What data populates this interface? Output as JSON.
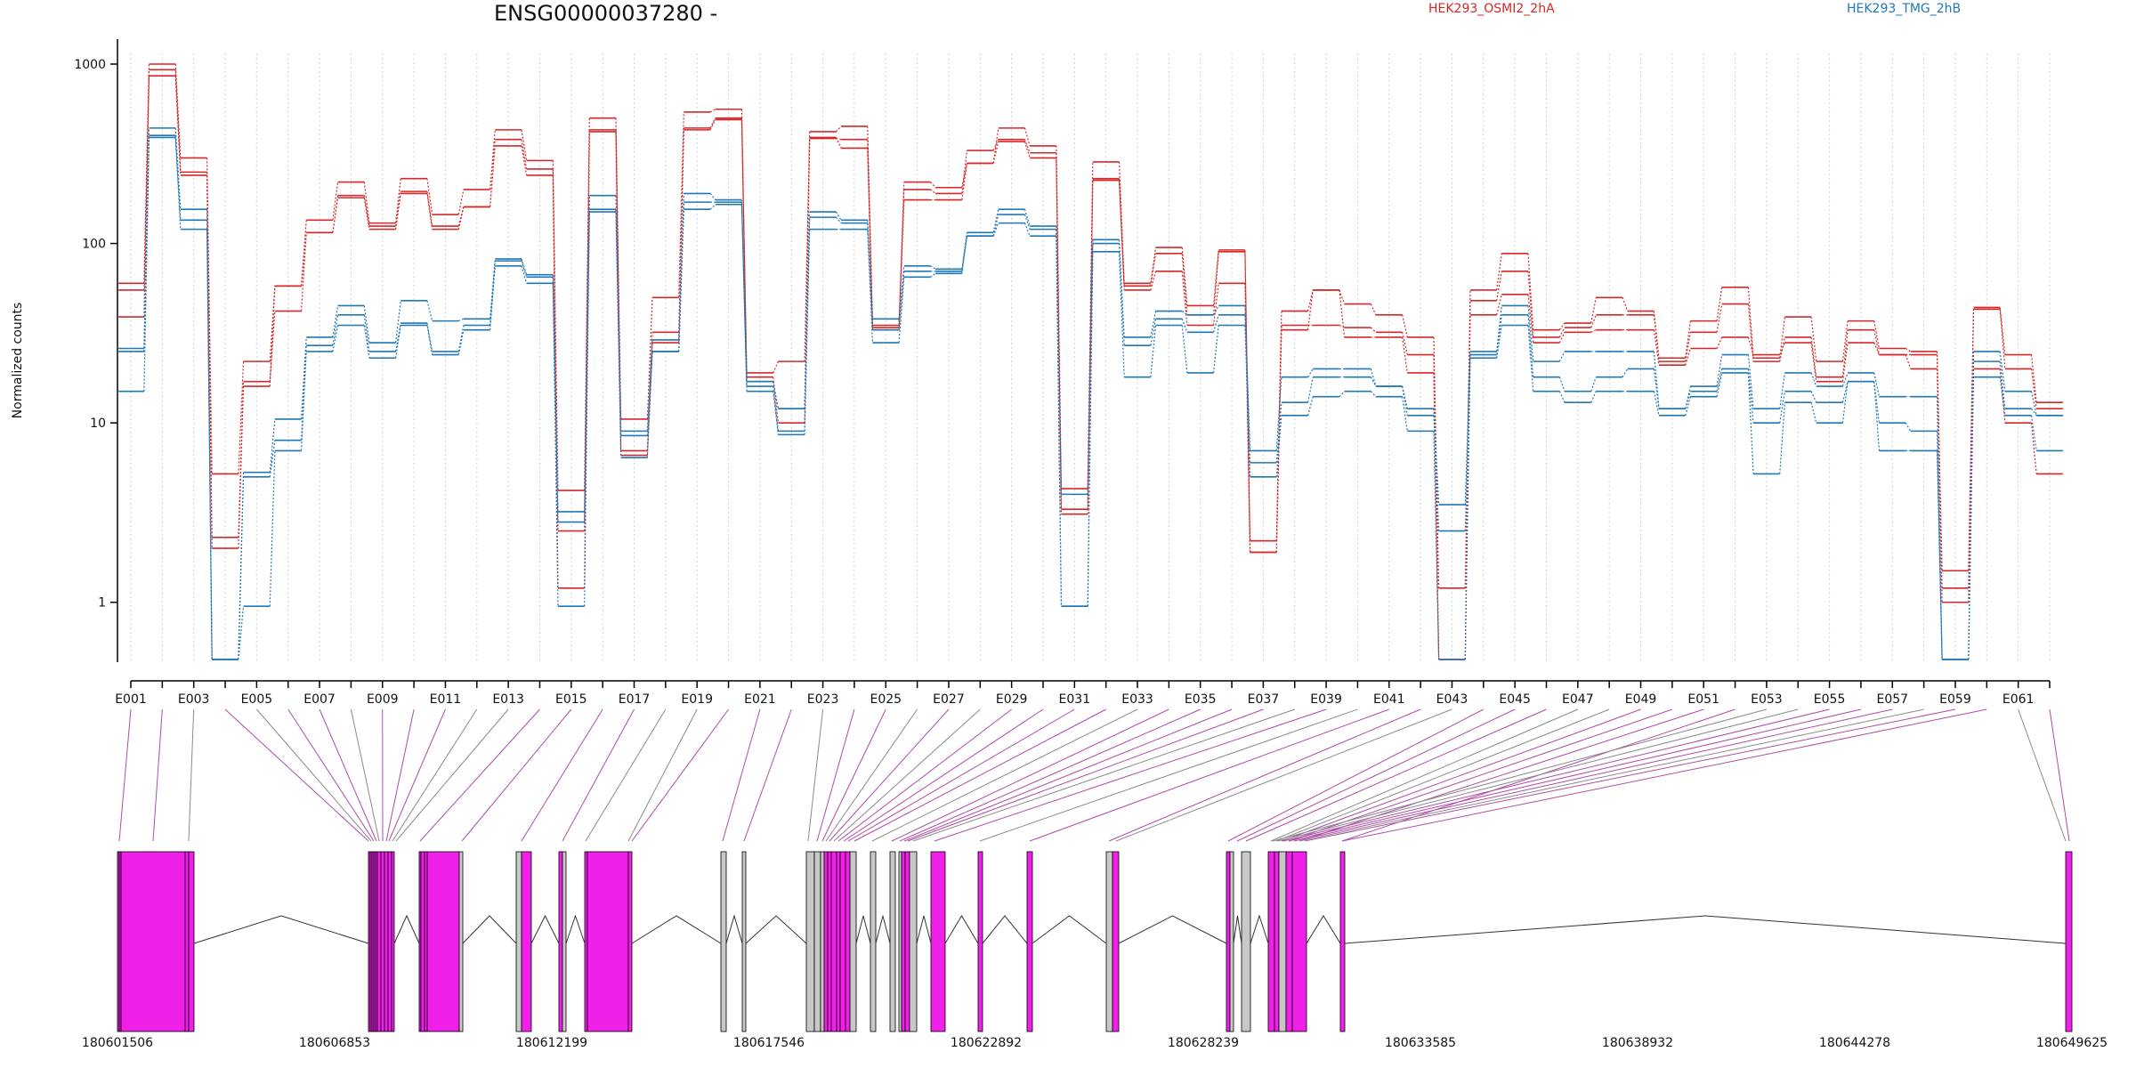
{
  "chart_data": {
    "type": "line",
    "title": "ENSG00000037280 -",
    "ylabel": "Normalized counts",
    "y_scale": "log",
    "ylim": [
      0.4,
      1200
    ],
    "y_ticks": [
      {
        "value": 1,
        "label": "1"
      },
      {
        "value": 10,
        "label": "10"
      },
      {
        "value": 100,
        "label": "100"
      },
      {
        "value": 1000,
        "label": "1000"
      }
    ],
    "categories": [
      "E001",
      "E002",
      "E003",
      "E004",
      "E005",
      "E006",
      "E007",
      "E008",
      "E009",
      "E010",
      "E011",
      "E012",
      "E013",
      "E014",
      "E015",
      "E016",
      "E017",
      "E018",
      "E019",
      "E020",
      "E021",
      "E022",
      "E023",
      "E024",
      "E025",
      "E026",
      "E027",
      "E028",
      "E029",
      "E030",
      "E031",
      "E032",
      "E033",
      "E034",
      "E035",
      "E036",
      "E037",
      "E038",
      "E039",
      "E040",
      "E041",
      "E042",
      "E043",
      "E044",
      "E045",
      "E046",
      "E047",
      "E048",
      "E049",
      "E050",
      "E051",
      "E052",
      "E053",
      "E054",
      "E055",
      "E056",
      "E057",
      "E058",
      "E059",
      "E060",
      "E061",
      "E062"
    ],
    "x_tick_labels": [
      "E001",
      "E003",
      "E005",
      "E007",
      "E009",
      "E011",
      "E013",
      "E015",
      "E017",
      "E019",
      "E021",
      "E023",
      "E025",
      "E027",
      "E029",
      "E031",
      "E033",
      "E035",
      "E037",
      "E039",
      "E041",
      "E043",
      "E045",
      "E047",
      "E049",
      "E051",
      "E053",
      "E055",
      "E057",
      "E059",
      "E061"
    ],
    "legend": [
      {
        "name": "HEK293_OSMI2_2hA",
        "color": "#d62728"
      },
      {
        "name": "HEK293_TMG_2hB",
        "color": "#1f77b4"
      }
    ],
    "series": [
      {
        "group": "HEK293_OSMI2_2hA",
        "color": "#d62728",
        "values": [
          60,
          1000,
          300,
          5.2,
          22,
          58,
          135,
          220,
          130,
          230,
          145,
          200,
          430,
          290,
          4.2,
          500,
          10.5,
          50,
          540,
          560,
          19,
          22,
          420,
          450,
          35,
          220,
          205,
          280,
          440,
          350,
          4.3,
          285,
          60,
          95,
          45,
          92,
          2.2,
          42,
          55,
          46,
          40,
          30,
          1.2,
          55,
          88,
          33,
          36,
          50,
          42,
          23,
          37,
          57,
          23,
          39,
          22,
          37,
          26,
          25,
          1.5,
          44,
          24,
          13
        ]
      },
      {
        "group": "HEK293_OSMI2_2hA",
        "color": "#d62728",
        "values": [
          55,
          930,
          250,
          2.3,
          17,
          42,
          115,
          185,
          125,
          195,
          125,
          160,
          380,
          260,
          1.2,
          420,
          7,
          32,
          440,
          500,
          17,
          12,
          385,
          380,
          33,
          200,
          190,
          330,
          380,
          320,
          3.3,
          230,
          55,
          70,
          35,
          60,
          1.9,
          35,
          35,
          34,
          32,
          24,
          0.48,
          48,
          70,
          30,
          34,
          40,
          40,
          22,
          32,
          46,
          22,
          30,
          18,
          33,
          24,
          24,
          1.2,
          43,
          20,
          12
        ]
      },
      {
        "group": "HEK293_OSMI2_2hA",
        "color": "#d62728",
        "values": [
          39,
          860,
          240,
          2.0,
          16,
          58,
          115,
          180,
          120,
          190,
          120,
          160,
          350,
          240,
          2.5,
          430,
          6.6,
          28,
          430,
          490,
          18,
          10,
          390,
          340,
          34,
          175,
          175,
          280,
          370,
          300,
          3.1,
          225,
          58,
          88,
          40,
          90,
          1.9,
          33,
          55,
          30,
          30,
          19,
          0.48,
          40,
          52,
          28,
          32,
          33,
          33,
          21,
          26,
          30,
          24,
          28,
          17,
          28,
          24,
          20,
          1.0,
          20,
          10,
          5.2
        ]
      },
      {
        "group": "HEK293_TMG_2hB",
        "color": "#1f77b4",
        "values": [
          26,
          440,
          155,
          0.48,
          5.3,
          10.5,
          30,
          45,
          28,
          48,
          37,
          38,
          82,
          67,
          3.2,
          185,
          9,
          29,
          190,
          175,
          17,
          12,
          150,
          135,
          38,
          75,
          72,
          115,
          155,
          125,
          4.0,
          105,
          30,
          42,
          40,
          45,
          7,
          18,
          20,
          20,
          16,
          12,
          3.5,
          25,
          45,
          22,
          25,
          25,
          25,
          12,
          16,
          24,
          12,
          19,
          16,
          19,
          14,
          14,
          0.48,
          25,
          15,
          11
        ]
      },
      {
        "group": "HEK293_TMG_2hB",
        "color": "#1f77b4",
        "values": [
          25,
          400,
          135,
          0.48,
          5,
          8,
          27,
          40,
          25,
          36,
          25,
          35,
          80,
          65,
          2.8,
          155,
          8.5,
          25,
          170,
          170,
          16,
          9,
          140,
          130,
          33,
          70,
          70,
          110,
          145,
          120,
          0.95,
          100,
          27,
          38,
          32,
          40,
          6,
          13,
          18,
          18,
          16,
          11,
          2.5,
          24,
          40,
          18,
          15,
          18,
          20,
          12,
          15,
          20,
          10,
          15,
          13,
          17,
          10,
          9,
          0.48,
          22,
          12,
          11
        ]
      },
      {
        "group": "HEK293_TMG_2hB",
        "color": "#1f77b4",
        "values": [
          15,
          390,
          120,
          0.48,
          0.95,
          7,
          25,
          35,
          23,
          35,
          24,
          33,
          75,
          60,
          0.95,
          150,
          6.4,
          25,
          155,
          165,
          15,
          8.6,
          120,
          120,
          28,
          65,
          68,
          110,
          130,
          110,
          0.95,
          90,
          18,
          35,
          19,
          35,
          5,
          11,
          14,
          15,
          14,
          9,
          0.48,
          23,
          35,
          15,
          13,
          15,
          15,
          11,
          14,
          19,
          5.2,
          13,
          10,
          17,
          7,
          7,
          0.48,
          18,
          11,
          7
        ]
      }
    ]
  },
  "gene_model": {
    "coordinate_ticks": [
      "180601506",
      "180606853",
      "180612199",
      "180617546",
      "180622892",
      "180628239",
      "180633585",
      "180638932",
      "180644278",
      "180649625"
    ],
    "exon_colors": {
      "counted": "#f020e8",
      "not_counted": "#c8c8c8"
    }
  }
}
